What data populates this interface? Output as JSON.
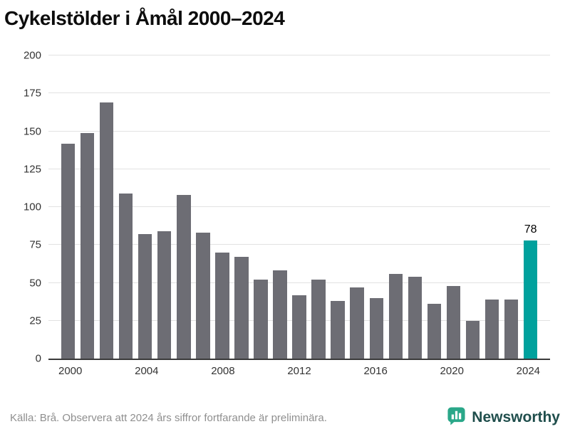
{
  "title": "Cykelstölder i Åmål 2000–2024",
  "footer": {
    "source": "Källa: Brå. Observera att 2024 års siffror fortfarande är preliminära.",
    "brand": "Newsworthy"
  },
  "colors": {
    "bar": "#6d6d74",
    "highlight": "#00a19d",
    "grid": "#e2e2e2",
    "axis": "#3a3a3a",
    "brand": "#2aa789"
  },
  "chart_data": {
    "type": "bar",
    "title": "Cykelstölder i Åmål 2000–2024",
    "x": [
      2000,
      2001,
      2002,
      2003,
      2004,
      2005,
      2006,
      2007,
      2008,
      2009,
      2010,
      2011,
      2012,
      2013,
      2014,
      2015,
      2016,
      2017,
      2018,
      2019,
      2020,
      2021,
      2022,
      2023,
      2024
    ],
    "values": [
      142,
      149,
      169,
      109,
      82,
      84,
      108,
      83,
      70,
      67,
      52,
      58,
      42,
      52,
      38,
      47,
      40,
      56,
      54,
      36,
      48,
      25,
      39,
      39,
      78
    ],
    "highlight_index": 24,
    "highlight_label": "78",
    "y_ticks": [
      0,
      25,
      50,
      75,
      100,
      125,
      150,
      175,
      200
    ],
    "x_ticks": [
      2000,
      2004,
      2008,
      2012,
      2016,
      2020,
      2024
    ],
    "ylim": [
      0,
      200
    ],
    "xlabel": "",
    "ylabel": "",
    "grid": true,
    "legend": "none"
  }
}
